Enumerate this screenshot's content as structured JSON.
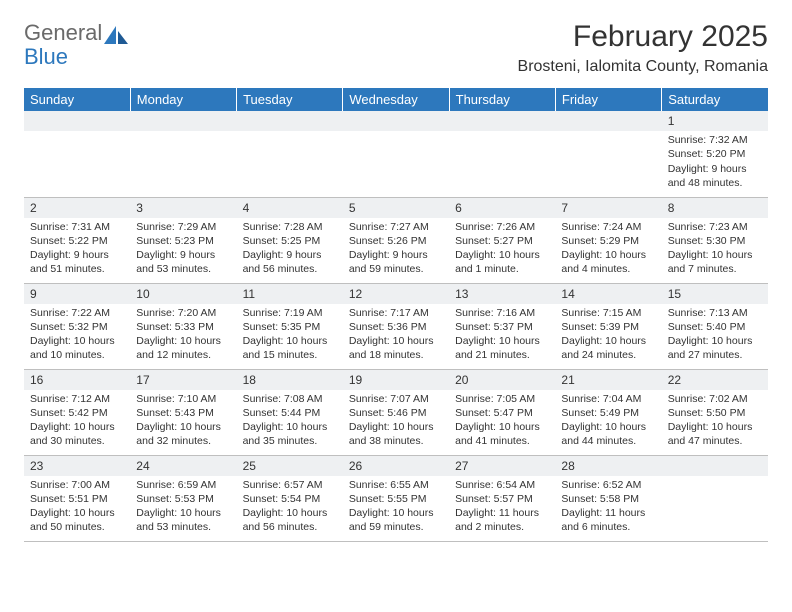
{
  "brand": {
    "part1": "General",
    "part2": "Blue"
  },
  "title": "February 2025",
  "location": "Brosteni, Ialomita County, Romania",
  "colors": {
    "header_bg": "#2d78bd",
    "header_text": "#ffffff",
    "daynum_bg": "#eef0f2",
    "border": "#bfbfbf",
    "logo_gray": "#6a6a6a",
    "logo_blue": "#2d78bd"
  },
  "day_labels": [
    "Sunday",
    "Monday",
    "Tuesday",
    "Wednesday",
    "Thursday",
    "Friday",
    "Saturday"
  ],
  "weeks": [
    [
      null,
      null,
      null,
      null,
      null,
      null,
      {
        "n": "1",
        "sr": "Sunrise: 7:32 AM",
        "ss": "Sunset: 5:20 PM",
        "dl": "Daylight: 9 hours and 48 minutes."
      }
    ],
    [
      {
        "n": "2",
        "sr": "Sunrise: 7:31 AM",
        "ss": "Sunset: 5:22 PM",
        "dl": "Daylight: 9 hours and 51 minutes."
      },
      {
        "n": "3",
        "sr": "Sunrise: 7:29 AM",
        "ss": "Sunset: 5:23 PM",
        "dl": "Daylight: 9 hours and 53 minutes."
      },
      {
        "n": "4",
        "sr": "Sunrise: 7:28 AM",
        "ss": "Sunset: 5:25 PM",
        "dl": "Daylight: 9 hours and 56 minutes."
      },
      {
        "n": "5",
        "sr": "Sunrise: 7:27 AM",
        "ss": "Sunset: 5:26 PM",
        "dl": "Daylight: 9 hours and 59 minutes."
      },
      {
        "n": "6",
        "sr": "Sunrise: 7:26 AM",
        "ss": "Sunset: 5:27 PM",
        "dl": "Daylight: 10 hours and 1 minute."
      },
      {
        "n": "7",
        "sr": "Sunrise: 7:24 AM",
        "ss": "Sunset: 5:29 PM",
        "dl": "Daylight: 10 hours and 4 minutes."
      },
      {
        "n": "8",
        "sr": "Sunrise: 7:23 AM",
        "ss": "Sunset: 5:30 PM",
        "dl": "Daylight: 10 hours and 7 minutes."
      }
    ],
    [
      {
        "n": "9",
        "sr": "Sunrise: 7:22 AM",
        "ss": "Sunset: 5:32 PM",
        "dl": "Daylight: 10 hours and 10 minutes."
      },
      {
        "n": "10",
        "sr": "Sunrise: 7:20 AM",
        "ss": "Sunset: 5:33 PM",
        "dl": "Daylight: 10 hours and 12 minutes."
      },
      {
        "n": "11",
        "sr": "Sunrise: 7:19 AM",
        "ss": "Sunset: 5:35 PM",
        "dl": "Daylight: 10 hours and 15 minutes."
      },
      {
        "n": "12",
        "sr": "Sunrise: 7:17 AM",
        "ss": "Sunset: 5:36 PM",
        "dl": "Daylight: 10 hours and 18 minutes."
      },
      {
        "n": "13",
        "sr": "Sunrise: 7:16 AM",
        "ss": "Sunset: 5:37 PM",
        "dl": "Daylight: 10 hours and 21 minutes."
      },
      {
        "n": "14",
        "sr": "Sunrise: 7:15 AM",
        "ss": "Sunset: 5:39 PM",
        "dl": "Daylight: 10 hours and 24 minutes."
      },
      {
        "n": "15",
        "sr": "Sunrise: 7:13 AM",
        "ss": "Sunset: 5:40 PM",
        "dl": "Daylight: 10 hours and 27 minutes."
      }
    ],
    [
      {
        "n": "16",
        "sr": "Sunrise: 7:12 AM",
        "ss": "Sunset: 5:42 PM",
        "dl": "Daylight: 10 hours and 30 minutes."
      },
      {
        "n": "17",
        "sr": "Sunrise: 7:10 AM",
        "ss": "Sunset: 5:43 PM",
        "dl": "Daylight: 10 hours and 32 minutes."
      },
      {
        "n": "18",
        "sr": "Sunrise: 7:08 AM",
        "ss": "Sunset: 5:44 PM",
        "dl": "Daylight: 10 hours and 35 minutes."
      },
      {
        "n": "19",
        "sr": "Sunrise: 7:07 AM",
        "ss": "Sunset: 5:46 PM",
        "dl": "Daylight: 10 hours and 38 minutes."
      },
      {
        "n": "20",
        "sr": "Sunrise: 7:05 AM",
        "ss": "Sunset: 5:47 PM",
        "dl": "Daylight: 10 hours and 41 minutes."
      },
      {
        "n": "21",
        "sr": "Sunrise: 7:04 AM",
        "ss": "Sunset: 5:49 PM",
        "dl": "Daylight: 10 hours and 44 minutes."
      },
      {
        "n": "22",
        "sr": "Sunrise: 7:02 AM",
        "ss": "Sunset: 5:50 PM",
        "dl": "Daylight: 10 hours and 47 minutes."
      }
    ],
    [
      {
        "n": "23",
        "sr": "Sunrise: 7:00 AM",
        "ss": "Sunset: 5:51 PM",
        "dl": "Daylight: 10 hours and 50 minutes."
      },
      {
        "n": "24",
        "sr": "Sunrise: 6:59 AM",
        "ss": "Sunset: 5:53 PM",
        "dl": "Daylight: 10 hours and 53 minutes."
      },
      {
        "n": "25",
        "sr": "Sunrise: 6:57 AM",
        "ss": "Sunset: 5:54 PM",
        "dl": "Daylight: 10 hours and 56 minutes."
      },
      {
        "n": "26",
        "sr": "Sunrise: 6:55 AM",
        "ss": "Sunset: 5:55 PM",
        "dl": "Daylight: 10 hours and 59 minutes."
      },
      {
        "n": "27",
        "sr": "Sunrise: 6:54 AM",
        "ss": "Sunset: 5:57 PM",
        "dl": "Daylight: 11 hours and 2 minutes."
      },
      {
        "n": "28",
        "sr": "Sunrise: 6:52 AM",
        "ss": "Sunset: 5:58 PM",
        "dl": "Daylight: 11 hours and 6 minutes."
      },
      null
    ]
  ]
}
